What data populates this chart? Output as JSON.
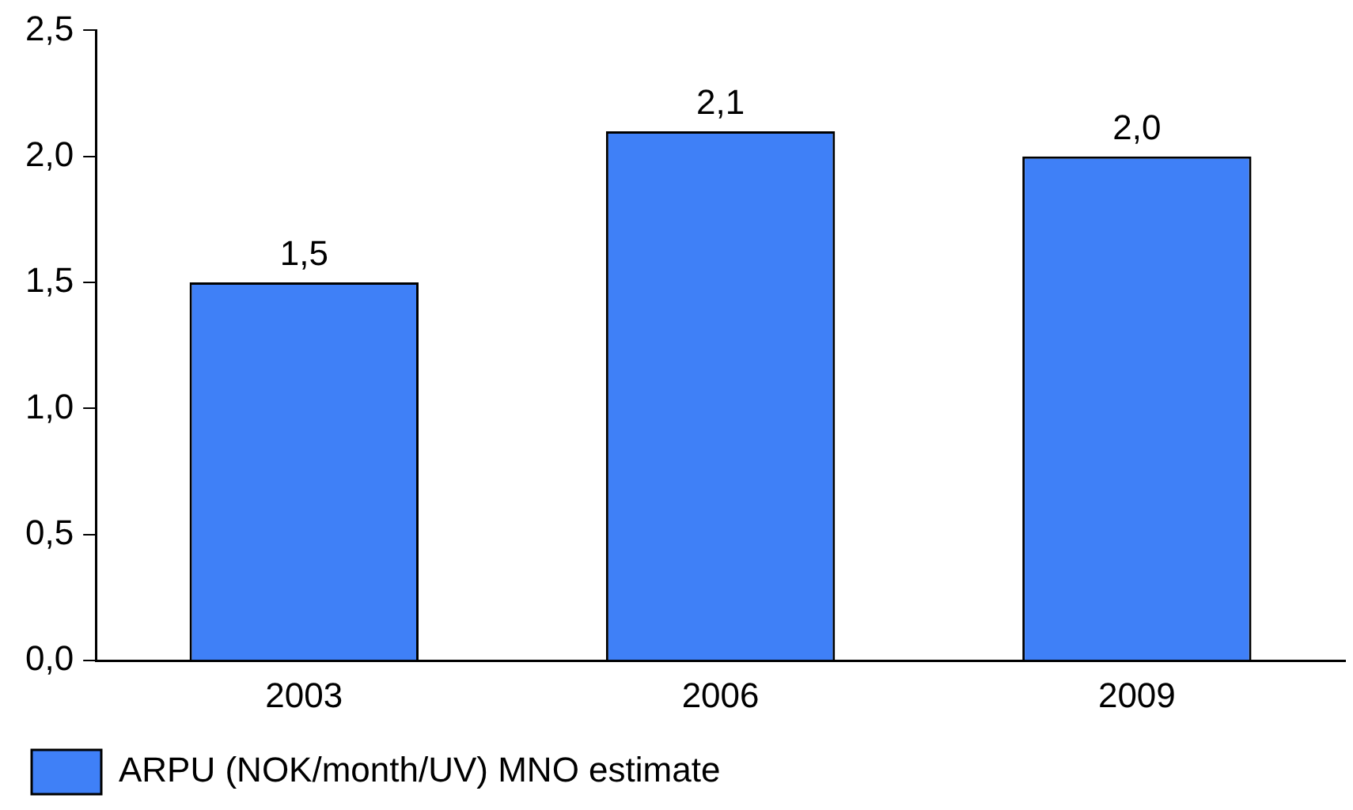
{
  "chart_data": {
    "type": "bar",
    "categories": [
      "2003",
      "2006",
      "2009"
    ],
    "series": [
      {
        "name": "ARPU (NOK/month/UV) MNO estimate",
        "color": "#3f80f7",
        "values": [
          1.5,
          2.1,
          2.0
        ],
        "value_labels": [
          "1,5",
          "2,1",
          "2,0"
        ]
      }
    ],
    "ylim": [
      0,
      2.5
    ],
    "yticks": [
      {
        "value": 0,
        "label": "0,0"
      },
      {
        "value": 0.5,
        "label": "0,5"
      },
      {
        "value": 1,
        "label": "1,0"
      },
      {
        "value": 1.5,
        "label": "1,5"
      },
      {
        "value": 2,
        "label": "2,0"
      },
      {
        "value": 2.5,
        "label": "2,5"
      }
    ],
    "grid": false,
    "legend": "bottom left"
  }
}
